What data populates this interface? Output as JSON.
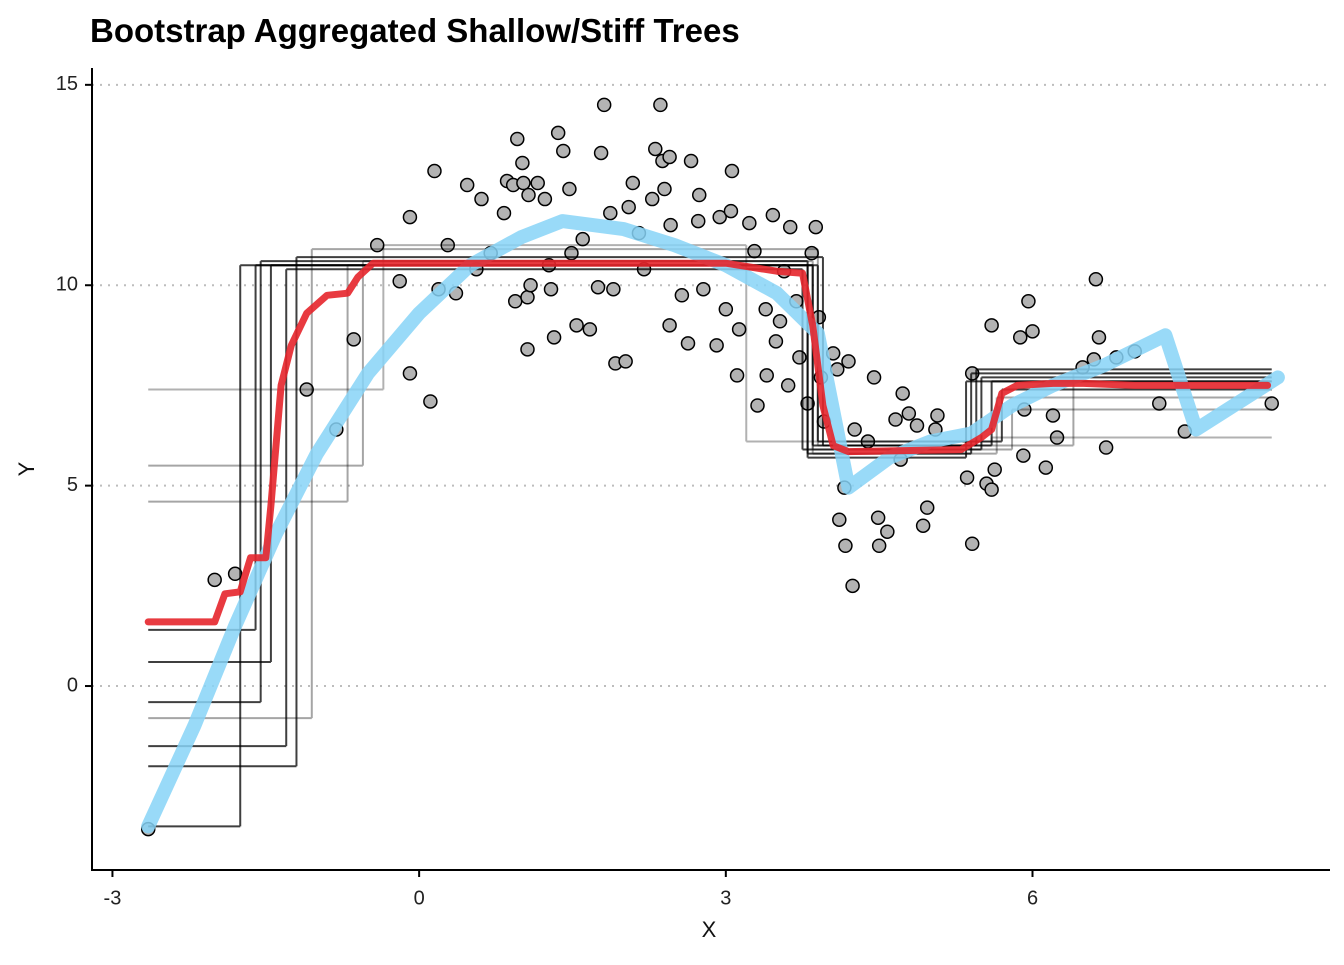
{
  "chart_data": {
    "type": "scatter",
    "title": "Bootstrap Aggregated Shallow/Stiff Trees",
    "xlabel": "X",
    "ylabel": "Y",
    "xlim": [
      -3.2,
      8.91
    ],
    "ylim": [
      -4.59,
      15.42
    ],
    "xticks": [
      -3,
      0,
      3,
      6
    ],
    "yticks": [
      0,
      5,
      10,
      15
    ],
    "grid": "y",
    "series": [
      {
        "type": "scatter",
        "color": "#b3b3b3",
        "x": [
          -2.65,
          -2.0,
          -1.8,
          -1.1,
          -0.81,
          -0.64,
          -0.41,
          -0.19,
          -0.09,
          -0.09,
          0.11,
          0.15,
          0.19,
          0.28,
          0.36,
          0.47,
          0.61,
          0.56,
          0.7,
          0.83,
          0.86,
          0.92,
          0.96,
          0.94,
          1.01,
          1.02,
          1.06,
          1.06,
          1.07,
          1.09,
          1.16,
          1.23,
          1.27,
          1.29,
          1.32,
          1.36,
          1.41,
          1.47,
          1.49,
          1.54,
          1.6,
          1.67,
          1.75,
          1.78,
          1.81,
          1.87,
          1.9,
          1.92,
          2.02,
          2.05,
          2.09,
          2.15,
          2.2,
          2.28,
          2.31,
          2.36,
          2.38,
          2.4,
          2.45,
          2.46,
          2.45,
          2.57,
          2.66,
          2.73,
          2.74,
          2.63,
          2.78,
          2.91,
          2.94,
          3.0,
          3.06,
          3.05,
          3.13,
          3.11,
          3.23,
          3.28,
          3.31,
          3.39,
          3.4,
          3.46,
          3.49,
          3.53,
          3.57,
          3.63,
          3.61,
          3.69,
          3.72,
          3.8,
          3.84,
          3.88,
          3.91,
          3.93,
          3.96,
          4.05,
          4.09,
          4.11,
          4.16,
          4.17,
          4.2,
          4.24,
          4.26,
          4.39,
          4.45,
          4.49,
          4.5,
          4.58,
          4.66,
          4.71,
          4.73,
          4.79,
          4.87,
          4.93,
          4.97,
          5.05,
          5.07,
          5.36,
          5.41,
          5.41,
          5.55,
          5.6,
          5.6,
          5.63,
          5.88,
          5.91,
          5.92,
          5.96,
          6.0,
          6.13,
          6.2,
          6.24,
          6.49,
          6.62,
          6.65,
          6.6,
          6.72,
          6.82,
          7.0,
          7.24,
          7.49,
          8.34
        ],
        "y": [
          -3.57,
          2.65,
          2.8,
          7.4,
          6.4,
          8.65,
          11.0,
          10.1,
          11.7,
          7.8,
          7.1,
          12.85,
          9.9,
          11.0,
          9.8,
          12.5,
          12.15,
          10.4,
          10.8,
          11.8,
          12.6,
          12.5,
          13.65,
          9.6,
          13.05,
          12.55,
          9.7,
          8.4,
          12.25,
          10.0,
          12.55,
          12.15,
          10.5,
          9.9,
          8.7,
          13.8,
          13.35,
          12.4,
          10.8,
          9.0,
          11.15,
          8.9,
          9.95,
          13.3,
          14.5,
          11.8,
          9.9,
          8.05,
          8.1,
          11.95,
          12.55,
          11.3,
          10.4,
          12.15,
          13.4,
          14.5,
          13.1,
          12.4,
          13.2,
          11.5,
          9.0,
          9.75,
          13.1,
          11.6,
          12.25,
          8.55,
          9.9,
          8.5,
          11.7,
          9.4,
          12.85,
          11.85,
          8.9,
          7.75,
          11.55,
          10.85,
          7.0,
          9.4,
          7.75,
          11.75,
          8.6,
          9.1,
          10.35,
          11.45,
          7.5,
          9.6,
          8.2,
          7.05,
          10.8,
          11.45,
          9.2,
          7.7,
          6.6,
          8.3,
          7.9,
          4.15,
          4.95,
          3.5,
          8.1,
          2.5,
          6.4,
          6.1,
          7.7,
          4.2,
          3.5,
          3.85,
          6.65,
          5.65,
          7.3,
          6.8,
          6.5,
          4.0,
          4.45,
          6.4,
          6.75,
          5.2,
          3.55,
          7.8,
          5.05,
          4.9,
          9.0,
          5.4,
          8.7,
          5.75,
          6.9,
          9.6,
          8.85,
          5.45,
          6.75,
          6.2,
          7.95,
          10.15,
          8.7,
          8.15,
          5.95,
          8.2,
          8.35,
          7.05,
          6.35,
          7.05
        ]
      },
      {
        "type": "step",
        "color": "#000000",
        "opacity": 0.75,
        "breaks": [
          -2.65,
          -1.75,
          3.85,
          5.6,
          8.34
        ],
        "levels": [
          -3.5,
          10.5,
          6.0,
          7.6
        ]
      },
      {
        "type": "step",
        "color": "#000000",
        "opacity": 0.75,
        "breaks": [
          -2.65,
          -1.55,
          3.8,
          5.4,
          8.34
        ],
        "levels": [
          -0.4,
          10.6,
          5.8,
          7.8
        ]
      },
      {
        "type": "step",
        "color": "#000000",
        "opacity": 0.75,
        "breaks": [
          -2.65,
          -1.45,
          3.9,
          5.7,
          8.34
        ],
        "levels": [
          0.6,
          10.5,
          6.1,
          7.4
        ]
      },
      {
        "type": "step",
        "color": "#000000",
        "opacity": 0.75,
        "breaks": [
          -2.65,
          -1.3,
          3.75,
          5.5,
          8.34
        ],
        "levels": [
          -1.5,
          10.4,
          5.9,
          7.7
        ]
      },
      {
        "type": "step",
        "color": "#000000",
        "opacity": 0.35,
        "breaks": [
          -2.65,
          -0.55,
          3.85,
          5.65,
          8.34
        ],
        "levels": [
          5.5,
          10.6,
          5.8,
          7.2
        ]
      },
      {
        "type": "step",
        "color": "#000000",
        "opacity": 0.75,
        "breaks": [
          -2.65,
          -1.2,
          3.95,
          5.45,
          8.34
        ],
        "levels": [
          -2.0,
          10.7,
          6.0,
          7.9
        ]
      },
      {
        "type": "step",
        "color": "#000000",
        "opacity": 0.3,
        "breaks": [
          -2.65,
          -0.35,
          3.2,
          5.6,
          8.34
        ],
        "levels": [
          7.4,
          11.0,
          6.1,
          6.2
        ]
      },
      {
        "type": "step",
        "color": "#000000",
        "opacity": 0.75,
        "breaks": [
          -2.65,
          -1.6,
          3.8,
          5.35,
          8.34
        ],
        "levels": [
          1.4,
          10.5,
          5.7,
          7.6
        ]
      },
      {
        "type": "step",
        "color": "#000000",
        "opacity": 0.35,
        "breaks": [
          -2.65,
          -0.7,
          3.85,
          5.8,
          8.34
        ],
        "levels": [
          4.6,
          10.5,
          5.9,
          6.9
        ]
      },
      {
        "type": "step",
        "color": "#000000",
        "opacity": 0.35,
        "breaks": [
          -2.65,
          -1.05,
          3.9,
          6.4,
          8.34
        ],
        "levels": [
          -0.8,
          10.9,
          6.0,
          7.8
        ]
      },
      {
        "type": "line",
        "color": "#87d3f7",
        "opacity": 0.85,
        "width": 14,
        "x": [
          -2.65,
          -2.2,
          -1.8,
          -1.4,
          -1.0,
          -0.5,
          0.0,
          0.5,
          1.0,
          1.4,
          2.0,
          2.5,
          3.0,
          3.5,
          3.9,
          4.2,
          4.6,
          5.0,
          5.4,
          5.8,
          6.2,
          6.7,
          7.3,
          7.6,
          8.4
        ],
        "y": [
          -3.5,
          -1.0,
          1.5,
          3.8,
          5.8,
          7.8,
          9.3,
          10.5,
          11.2,
          11.6,
          11.4,
          11.0,
          10.5,
          9.8,
          8.8,
          4.95,
          5.7,
          6.1,
          6.3,
          7.0,
          7.5,
          8.0,
          8.75,
          6.4,
          7.7
        ]
      },
      {
        "type": "line",
        "color": "#e5252b",
        "opacity": 0.9,
        "width": 7,
        "x": [
          -2.65,
          -2.0,
          -1.9,
          -1.75,
          -1.65,
          -1.5,
          -1.45,
          -1.35,
          -1.25,
          -1.1,
          -0.9,
          -0.7,
          -0.6,
          -0.45,
          0.0,
          3.0,
          3.5,
          3.75,
          3.85,
          3.95,
          4.05,
          4.2,
          5.3,
          5.5,
          5.6,
          5.7,
          5.85,
          6.2,
          6.5,
          7.0,
          8.3
        ],
        "y": [
          1.6,
          1.6,
          2.3,
          2.35,
          3.2,
          3.2,
          4.5,
          7.5,
          8.5,
          9.3,
          9.75,
          9.8,
          10.2,
          10.55,
          10.55,
          10.55,
          10.35,
          10.3,
          9.0,
          7.0,
          6.0,
          5.85,
          5.9,
          6.2,
          6.4,
          7.3,
          7.5,
          7.55,
          7.55,
          7.5,
          7.5
        ]
      }
    ]
  }
}
